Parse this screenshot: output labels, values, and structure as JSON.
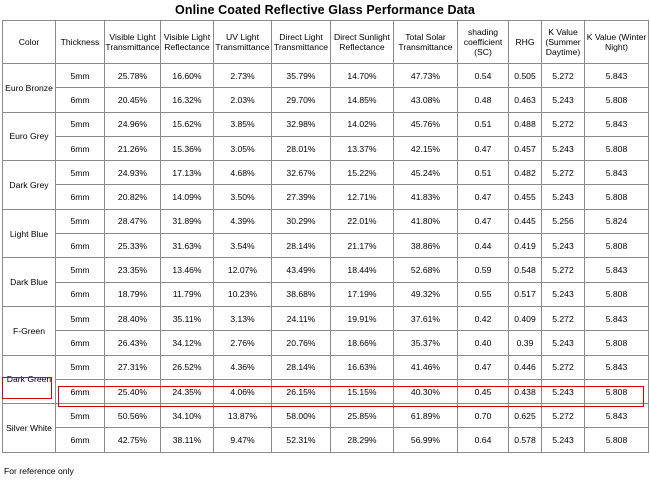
{
  "title": "Online Coated Reflective Glass Performance Data",
  "headers": [
    "Color",
    "Thickness",
    "Visible Light Transmittance",
    "Visible Light Reflectance",
    "UV Light Transmittance",
    "Direct Light Transmittance",
    "Direct Sunlight Reflectance",
    "Total Solar Transmittance",
    "shading coefficient (SC)",
    "RHG",
    "K Value (Summer Daytime)",
    "K Value (Winter Night)"
  ],
  "groups": [
    {
      "color": "Euro Bronze",
      "rows": [
        [
          "5mm",
          "25.78%",
          "16.60%",
          "2.73%",
          "35.79%",
          "14.70%",
          "47.73%",
          "0.54",
          "0.505",
          "5.272",
          "5.843"
        ],
        [
          "6mm",
          "20.45%",
          "16.32%",
          "2.03%",
          "29.70%",
          "14.85%",
          "43.08%",
          "0.48",
          "0.463",
          "5.243",
          "5.808"
        ]
      ]
    },
    {
      "color": "Euro Grey",
      "rows": [
        [
          "5mm",
          "24.96%",
          "15.62%",
          "3.85%",
          "32.98%",
          "14.02%",
          "45.76%",
          "0.51",
          "0.488",
          "5.272",
          "5.843"
        ],
        [
          "6mm",
          "21.26%",
          "15.36%",
          "3.05%",
          "28.01%",
          "13.37%",
          "42.15%",
          "0.47",
          "0.457",
          "5.243",
          "5.808"
        ]
      ]
    },
    {
      "color": "Dark Grey",
      "rows": [
        [
          "5mm",
          "24.93%",
          "17.13%",
          "4.68%",
          "32.67%",
          "15.22%",
          "45.24%",
          "0.51",
          "0.482",
          "5.272",
          "5.843"
        ],
        [
          "6mm",
          "20.82%",
          "14.09%",
          "3.50%",
          "27.39%",
          "12.71%",
          "41.83%",
          "0.47",
          "0.455",
          "5.243",
          "5.808"
        ]
      ]
    },
    {
      "color": "Light Blue",
      "rows": [
        [
          "5mm",
          "28.47%",
          "31.89%",
          "4.39%",
          "30.29%",
          "22.01%",
          "41.80%",
          "0.47",
          "0.445",
          "5.256",
          "5.824"
        ],
        [
          "6mm",
          "25.33%",
          "31.63%",
          "3.54%",
          "28.14%",
          "21.17%",
          "38.86%",
          "0.44",
          "0.419",
          "5.243",
          "5.808"
        ]
      ]
    },
    {
      "color": "Dark Blue",
      "rows": [
        [
          "5mm",
          "23.35%",
          "13.46%",
          "12.07%",
          "43.49%",
          "18.44%",
          "52.68%",
          "0.59",
          "0.548",
          "5.272",
          "5.843"
        ],
        [
          "6mm",
          "18.79%",
          "11.79%",
          "10.23%",
          "38.68%",
          "17.19%",
          "49.32%",
          "0.55",
          "0.517",
          "5.243",
          "5.808"
        ]
      ]
    },
    {
      "color": "F-Green",
      "rows": [
        [
          "5mm",
          "28.40%",
          "35.11%",
          "3.13%",
          "24.11%",
          "19.91%",
          "37.61%",
          "0.42",
          "0.409",
          "5.272",
          "5.843"
        ],
        [
          "6mm",
          "26.43%",
          "34.12%",
          "2.76%",
          "20.76%",
          "18.66%",
          "35.37%",
          "0.40",
          "0.39",
          "5.243",
          "5.808"
        ]
      ]
    },
    {
      "color": "Dark Green",
      "rows": [
        [
          "5mm",
          "27.31%",
          "26.52%",
          "4.36%",
          "28.14%",
          "16.63%",
          "41.46%",
          "0.47",
          "0.446",
          "5.272",
          "5.843"
        ],
        [
          "6mm",
          "25.40%",
          "24.35%",
          "4.06%",
          "26.15%",
          "15.15%",
          "40.30%",
          "0.45",
          "0.438",
          "5.243",
          "5.808"
        ]
      ]
    },
    {
      "color": "Silver White",
      "rows": [
        [
          "5mm",
          "50.56%",
          "34.10%",
          "13.87%",
          "58.00%",
          "25.85%",
          "61.89%",
          "0.70",
          "0.625",
          "5.272",
          "5.843"
        ],
        [
          "6mm",
          "42.75%",
          "38.11%",
          "9.47%",
          "52.31%",
          "28.29%",
          "56.99%",
          "0.64",
          "0.578",
          "5.243",
          "5.808"
        ]
      ]
    }
  ],
  "footnote": "For reference only",
  "highlight_color": "#d20000"
}
